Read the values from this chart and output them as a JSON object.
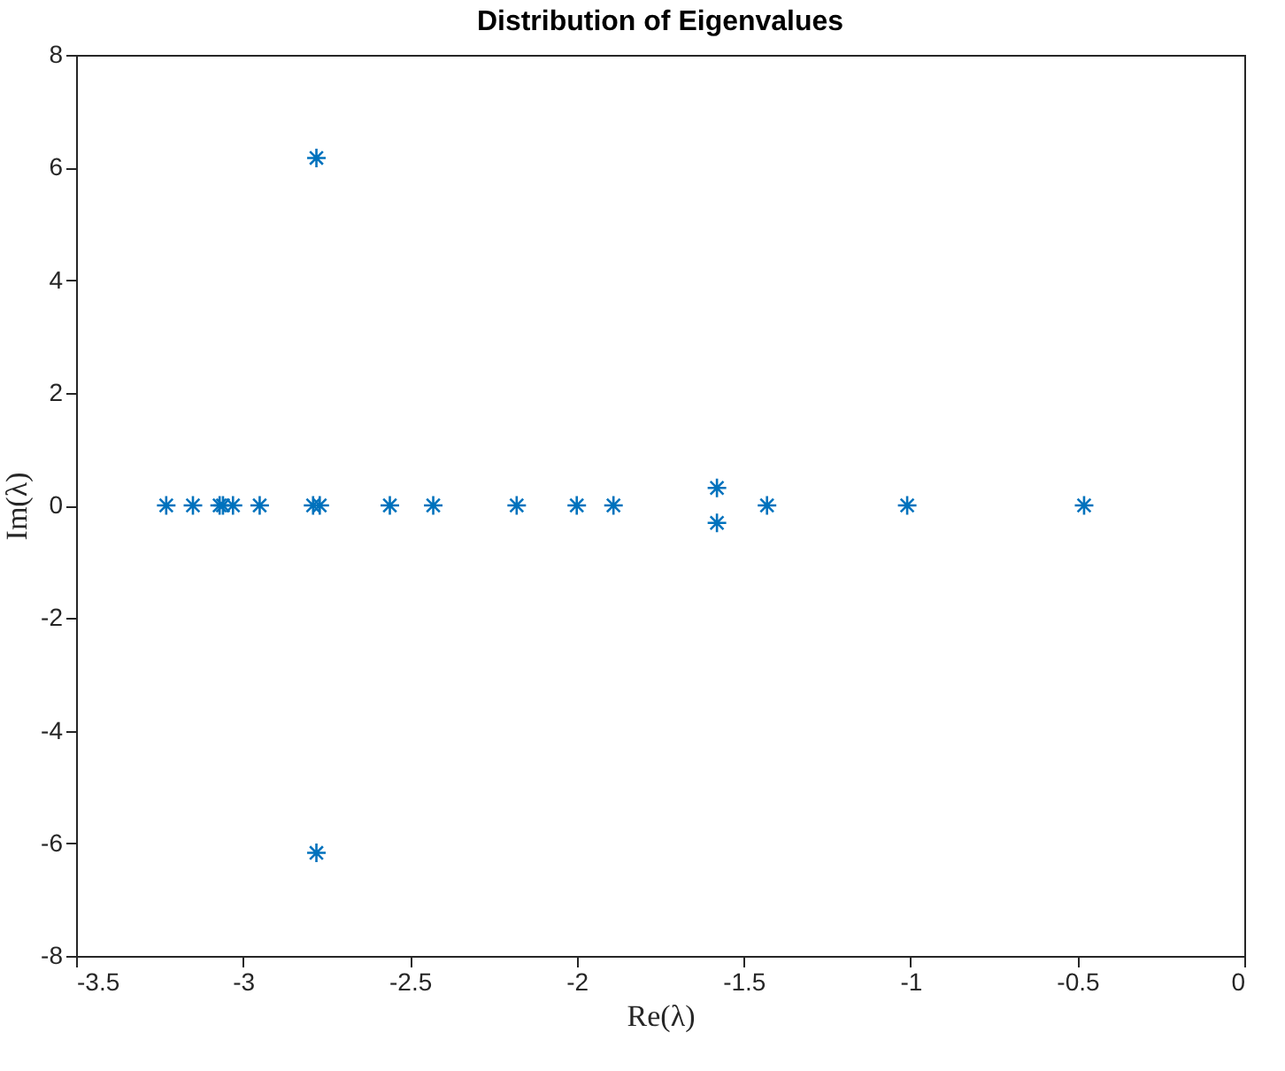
{
  "chart_data": {
    "type": "scatter",
    "title": "Distribution of Eigenvalues",
    "xlabel": "Re(λ)",
    "ylabel": "Im(λ)",
    "xlim": [
      -3.5,
      0
    ],
    "xticks": [
      -3.5,
      -3,
      -2.5,
      -2,
      -1.5,
      -1,
      -0.5,
      0
    ],
    "ylim": [
      -8,
      8
    ],
    "yticks": [
      -8,
      -6,
      -4,
      -2,
      0,
      2,
      4,
      6,
      8
    ],
    "grid": false,
    "marker": "cross",
    "series": [
      {
        "color": "#0072bd",
        "x": [
          -3.23,
          -3.15,
          -3.07,
          -3.06,
          -3.03,
          -2.95,
          -2.79,
          -2.78,
          -2.78,
          -2.77,
          -2.56,
          -2.43,
          -2.18,
          -2.0,
          -1.89,
          -1.58,
          -1.58,
          -1.43,
          -1.01,
          -0.48
        ],
        "values": [
          0,
          0,
          0,
          0,
          0,
          0,
          0,
          6.17,
          -6.17,
          0,
          0,
          0,
          0,
          0,
          0,
          0.31,
          -0.31,
          0,
          0,
          0
        ]
      }
    ]
  }
}
